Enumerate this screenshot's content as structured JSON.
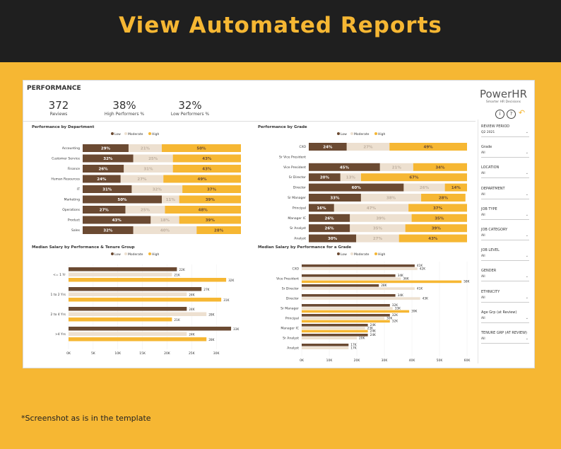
{
  "header": {
    "title": "View Automated Reports"
  },
  "footnote": "*Screenshot as is in the template",
  "page": {
    "title": "PERFORMANCE"
  },
  "kpis": [
    {
      "value": "372",
      "label": "Reviews"
    },
    {
      "value": "38%",
      "label": "High Performers %"
    },
    {
      "value": "32%",
      "label": "Low Performers %"
    }
  ],
  "brand": {
    "name": "PowerHR",
    "tagline": "Smarter HR Decisions"
  },
  "filters": [
    {
      "label": "REVIEW PERIOD",
      "value": "Q2 2021"
    },
    {
      "label": "Grade",
      "value": "All"
    },
    {
      "label": "LOCATION",
      "value": "All"
    },
    {
      "label": "DEPARTMENT",
      "value": "All"
    },
    {
      "label": "JOB TYPE",
      "value": "All"
    },
    {
      "label": "JOB CATEGORY",
      "value": "All"
    },
    {
      "label": "JOB LEVEL",
      "value": "All"
    },
    {
      "label": "GENDER",
      "value": "All"
    },
    {
      "label": "ETHNICITY",
      "value": "All"
    },
    {
      "label": "Age Grp (at Review)",
      "value": "All"
    },
    {
      "label": "TENURE GRP (AT REVIEW)",
      "value": "All"
    }
  ],
  "colors": {
    "low": "#6b4a32",
    "moderate": "#ede0d0",
    "high": "#f6b733",
    "accent": "#f6b733",
    "dark": "#1f1f1f"
  },
  "chart_data": [
    {
      "type": "bar",
      "stacked": true,
      "orientation": "horizontal",
      "title": "Performance by Department",
      "legend": [
        "Low",
        "Moderate",
        "High"
      ],
      "categories": [
        "Accounting",
        "Customer Service",
        "Finance",
        "Human Resources",
        "IT",
        "Marketing",
        "Operations",
        "Product",
        "Sales"
      ],
      "series": [
        {
          "name": "Low",
          "values": [
            29,
            32,
            26,
            24,
            31,
            50,
            27,
            43,
            32
          ]
        },
        {
          "name": "Moderate",
          "values": [
            21,
            25,
            31,
            27,
            32,
            11,
            25,
            18,
            40
          ]
        },
        {
          "name": "High",
          "values": [
            50,
            43,
            43,
            49,
            37,
            39,
            48,
            39,
            28
          ]
        }
      ]
    },
    {
      "type": "bar",
      "stacked": true,
      "orientation": "horizontal",
      "title": "Performance by Grade",
      "legend": [
        "Low",
        "Moderate",
        "High"
      ],
      "categories": [
        "CXO",
        "Sr Vice President",
        "Vice President",
        "Sr Director",
        "Director",
        "Sr Manager",
        "Principal",
        "Manager IC",
        "Sr Analyst",
        "Analyst"
      ],
      "series": [
        {
          "name": "Low",
          "values": [
            24,
            null,
            45,
            20,
            60,
            33,
            16,
            26,
            26,
            30
          ]
        },
        {
          "name": "Moderate",
          "values": [
            27,
            null,
            21,
            13,
            26,
            38,
            47,
            39,
            35,
            27
          ]
        },
        {
          "name": "High",
          "values": [
            49,
            null,
            34,
            67,
            14,
            28,
            37,
            35,
            39,
            43
          ]
        }
      ]
    },
    {
      "type": "bar",
      "orientation": "horizontal",
      "title": "Median Salary by Performance & Tenure Group",
      "legend": [
        "Low",
        "Moderate",
        "High"
      ],
      "categories": [
        "<= 1 Yr",
        "1 to 2 Yrs",
        "2 to 4 Yrs",
        ">4 Yrs"
      ],
      "xlim": [
        0,
        35
      ],
      "ticks": [
        "0K",
        "5K",
        "10K",
        "15K",
        "20K",
        "25K",
        "30K"
      ],
      "series": [
        {
          "name": "Low",
          "values": [
            22,
            27,
            24,
            33
          ]
        },
        {
          "name": "Moderate",
          "values": [
            21,
            24,
            28,
            24
          ]
        },
        {
          "name": "High",
          "values": [
            32,
            31,
            21,
            28
          ]
        }
      ],
      "labels": [
        [
          "22K",
          "27K",
          "24K",
          "33K"
        ],
        [
          "21K",
          "24K",
          "28K",
          "24K"
        ],
        [
          "32K",
          "31K",
          "21K",
          "28K"
        ]
      ]
    },
    {
      "type": "bar",
      "orientation": "horizontal",
      "title": "Median Salary by Performance for a Grade",
      "legend": [
        "Low",
        "Moderate",
        "High"
      ],
      "categories": [
        "CXO",
        "Vice President",
        "Sr Director",
        "Director",
        "Sr Manager",
        "Principal",
        "Manager IC",
        "Sr Analyst",
        "Analyst"
      ],
      "xlim": [
        0,
        60
      ],
      "ticks": [
        "0K",
        "10K",
        "20K",
        "30K",
        "40K",
        "50K",
        "60K"
      ],
      "series": [
        {
          "name": "Low",
          "values": [
            41,
            34,
            28,
            34,
            32,
            32,
            24,
            24,
            17
          ]
        },
        {
          "name": "Moderate",
          "values": [
            42,
            36,
            41,
            43,
            33,
            30,
            23,
            20,
            17
          ]
        },
        {
          "name": "High",
          "values": [
            null,
            58,
            null,
            null,
            39,
            32,
            24,
            null,
            null
          ]
        }
      ],
      "labels": [
        [
          "41K",
          "34K",
          "28K",
          "34K",
          "32K",
          "32K",
          "24K",
          "24K",
          "17K"
        ],
        [
          "42K",
          "36K",
          "41K",
          "43K",
          "33K",
          "30K",
          "23K",
          "20K",
          "17K"
        ],
        [
          "",
          "58K",
          "",
          "",
          "39K",
          "32K",
          "24K",
          "",
          ""
        ]
      ]
    }
  ]
}
